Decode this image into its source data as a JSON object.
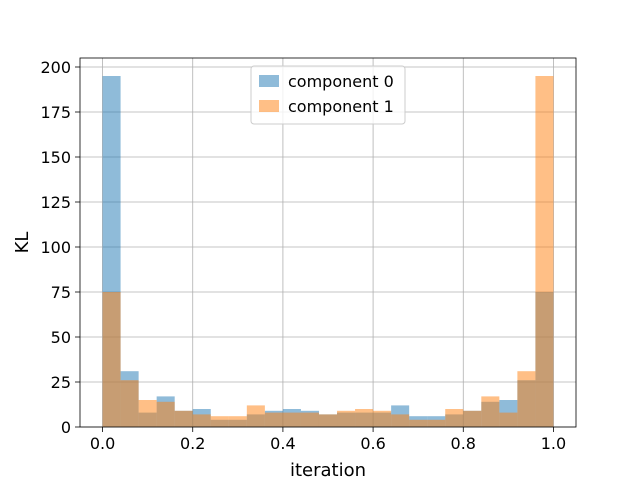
{
  "chart_data": {
    "type": "bar",
    "subtype": "histogram-overlay",
    "xlabel": "iteration",
    "ylabel": "KL",
    "xlim": [
      -0.05,
      1.05
    ],
    "ylim": [
      0,
      205
    ],
    "grid": true,
    "legend_position": "top-center",
    "xticks": [
      0.0,
      0.2,
      0.4,
      0.6,
      0.8,
      1.0
    ],
    "xtick_labels": [
      "0.0",
      "0.2",
      "0.4",
      "0.6",
      "0.8",
      "1.0"
    ],
    "yticks": [
      0,
      25,
      50,
      75,
      100,
      125,
      150,
      175,
      200
    ],
    "ytick_labels": [
      "0",
      "25",
      "50",
      "75",
      "100",
      "125",
      "150",
      "175",
      "200"
    ],
    "bin_edges": [
      0.0,
      0.04,
      0.08,
      0.12,
      0.16,
      0.2,
      0.24,
      0.28,
      0.32,
      0.36,
      0.4,
      0.44,
      0.48,
      0.52,
      0.56,
      0.6,
      0.64,
      0.68,
      0.72,
      0.76,
      0.8,
      0.84,
      0.88,
      0.92,
      0.96,
      1.0
    ],
    "series": [
      {
        "name": "component 0",
        "color": "#1f77b4",
        "alpha": 0.5,
        "values": [
          195,
          31,
          8,
          17,
          9,
          10,
          4,
          4,
          7,
          9,
          10,
          9,
          7,
          8,
          8,
          8,
          12,
          6,
          6,
          7,
          9,
          14,
          15,
          26,
          75
        ]
      },
      {
        "name": "component 1",
        "color": "#ff7f0e",
        "alpha": 0.5,
        "values": [
          75,
          26,
          15,
          14,
          9,
          7,
          6,
          6,
          12,
          8,
          8,
          8,
          7,
          9,
          10,
          9,
          7,
          4,
          4,
          10,
          9,
          17,
          8,
          31,
          195
        ]
      }
    ]
  }
}
